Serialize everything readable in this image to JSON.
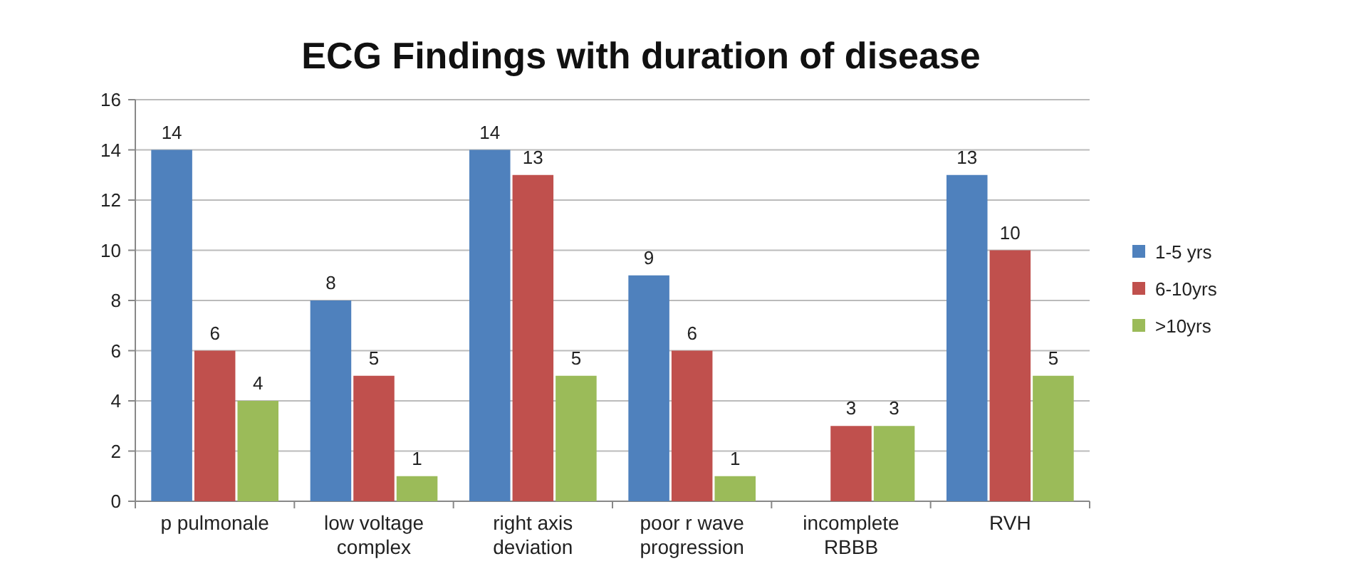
{
  "chart_data": {
    "type": "bar",
    "title": "ECG Findings with duration of disease",
    "categories": [
      "p pulmonale",
      "low voltage complex",
      "right axis deviation",
      "poor r wave progression",
      "incomplete RBBB",
      "RVH"
    ],
    "series": [
      {
        "name": "1-5 yrs",
        "color": "#4f81bd",
        "values": [
          14,
          8,
          14,
          9,
          null,
          13
        ]
      },
      {
        "name": "6-10yrs",
        "color": "#c0504d",
        "values": [
          6,
          5,
          13,
          6,
          3,
          10
        ]
      },
      {
        "name": ">10yrs",
        "color": "#9bbb59",
        "values": [
          4,
          1,
          5,
          1,
          3,
          5
        ]
      }
    ],
    "ylim": [
      0,
      16
    ],
    "yticks": [
      0,
      2,
      4,
      6,
      8,
      10,
      12,
      14,
      16
    ],
    "grid": "y",
    "legend": "right",
    "data_labels": true
  }
}
